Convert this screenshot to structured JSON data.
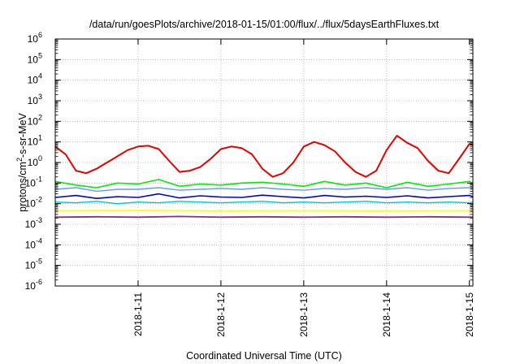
{
  "chart_data": {
    "type": "line",
    "title": "/data/run/goesPlots/archive/2018-01-15/01:00/flux/../flux/5daysEarthFluxes.txt",
    "xlabel": "Coordinated Universal Time (UTC)",
    "ylabel": {
      "base": "protons/cm",
      "sup": "2",
      "rest": "-s-sr-MeV"
    },
    "yscale": "log",
    "ylim": [
      1e-06,
      1000000.0
    ],
    "xlim": [
      "2018-01-10T00:00",
      "2018-01-15T01:00"
    ],
    "grid": true,
    "x_ticks": [
      {
        "at": "2018-01-11T00:00",
        "label": "2018-1-11"
      },
      {
        "at": "2018-01-12T00:00",
        "label": "2018-1-12"
      },
      {
        "at": "2018-01-13T00:00",
        "label": "2018-1-13"
      },
      {
        "at": "2018-01-14T00:00",
        "label": "2018-1-14"
      },
      {
        "at": "2018-01-15T00:00",
        "label": "2018-1-15"
      }
    ],
    "y_ticks": [
      {
        "value": 1000000.0,
        "base": "10",
        "exp": "6"
      },
      {
        "value": 100000.0,
        "base": "10",
        "exp": "5"
      },
      {
        "value": 10000.0,
        "base": "10",
        "exp": "4"
      },
      {
        "value": 1000.0,
        "base": "10",
        "exp": "3"
      },
      {
        "value": 100.0,
        "base": "10",
        "exp": "2"
      },
      {
        "value": 10.0,
        "base": "10",
        "exp": "1"
      },
      {
        "value": 1.0,
        "base": "10",
        "exp": "0"
      },
      {
        "value": 0.1,
        "base": "10",
        "exp": "-1"
      },
      {
        "value": 0.01,
        "base": "10",
        "exp": "-2"
      },
      {
        "value": 0.001,
        "base": "10",
        "exp": "-3"
      },
      {
        "value": 0.0001,
        "base": "10",
        "exp": "-4"
      },
      {
        "value": 1e-05,
        "base": "10",
        "exp": "-5"
      },
      {
        "value": 1e-06,
        "base": "10",
        "exp": "-6"
      }
    ],
    "series": [
      {
        "color": "#e60000",
        "width": 2.0,
        "x": [
          "2018-01-10T00:00",
          "2018-01-10T03:00",
          "2018-01-10T06:00",
          "2018-01-10T09:00",
          "2018-01-10T12:00",
          "2018-01-10T15:00",
          "2018-01-10T18:00",
          "2018-01-10T21:00",
          "2018-01-11T00:00",
          "2018-01-11T03:00",
          "2018-01-11T06:00",
          "2018-01-11T09:00",
          "2018-01-11T12:00",
          "2018-01-11T15:00",
          "2018-01-11T18:00",
          "2018-01-11T21:00",
          "2018-01-12T00:00",
          "2018-01-12T03:00",
          "2018-01-12T06:00",
          "2018-01-12T09:00",
          "2018-01-12T12:00",
          "2018-01-12T15:00",
          "2018-01-12T18:00",
          "2018-01-12T21:00",
          "2018-01-13T00:00",
          "2018-01-13T03:00",
          "2018-01-13T06:00",
          "2018-01-13T09:00",
          "2018-01-13T12:00",
          "2018-01-13T15:00",
          "2018-01-13T18:00",
          "2018-01-13T21:00",
          "2018-01-14T00:00",
          "2018-01-14T03:00",
          "2018-01-14T06:00",
          "2018-01-14T09:00",
          "2018-01-14T12:00",
          "2018-01-14T15:00",
          "2018-01-14T18:00",
          "2018-01-14T21:00",
          "2018-01-15T00:00",
          "2018-01-15T01:00"
        ],
        "y": [
          6,
          2.5,
          0.4,
          0.3,
          0.5,
          1.0,
          2.0,
          4.0,
          6,
          6.5,
          4.5,
          1.2,
          0.35,
          0.4,
          0.6,
          1.5,
          4.5,
          6,
          5,
          2.5,
          0.5,
          0.2,
          0.3,
          1.0,
          6,
          10,
          7,
          3.5,
          1.0,
          0.35,
          0.2,
          0.4,
          4,
          20,
          9,
          5,
          1.2,
          0.4,
          0.3,
          1.5,
          8,
          7
        ]
      },
      {
        "color": "#00ee00",
        "width": 1.6,
        "x": [
          "2018-01-10T00:00",
          "2018-01-10T06:00",
          "2018-01-10T12:00",
          "2018-01-10T18:00",
          "2018-01-11T00:00",
          "2018-01-11T06:00",
          "2018-01-11T12:00",
          "2018-01-11T18:00",
          "2018-01-12T00:00",
          "2018-01-12T06:00",
          "2018-01-12T12:00",
          "2018-01-12T18:00",
          "2018-01-13T00:00",
          "2018-01-13T06:00",
          "2018-01-13T12:00",
          "2018-01-13T18:00",
          "2018-01-14T00:00",
          "2018-01-14T06:00",
          "2018-01-14T12:00",
          "2018-01-14T18:00",
          "2018-01-15T00:00",
          "2018-01-15T01:00"
        ],
        "y": [
          0.12,
          0.08,
          0.06,
          0.1,
          0.09,
          0.15,
          0.07,
          0.09,
          0.08,
          0.1,
          0.11,
          0.09,
          0.07,
          0.12,
          0.08,
          0.1,
          0.06,
          0.11,
          0.07,
          0.09,
          0.12,
          0.1
        ]
      },
      {
        "color": "#6699ff",
        "width": 1.4,
        "x": [
          "2018-01-10T00:00",
          "2018-01-10T06:00",
          "2018-01-10T12:00",
          "2018-01-10T18:00",
          "2018-01-11T00:00",
          "2018-01-11T06:00",
          "2018-01-11T12:00",
          "2018-01-11T18:00",
          "2018-01-12T00:00",
          "2018-01-12T06:00",
          "2018-01-12T12:00",
          "2018-01-12T18:00",
          "2018-01-13T00:00",
          "2018-01-13T06:00",
          "2018-01-13T12:00",
          "2018-01-13T18:00",
          "2018-01-14T00:00",
          "2018-01-14T06:00",
          "2018-01-14T12:00",
          "2018-01-14T18:00",
          "2018-01-15T00:00",
          "2018-01-15T01:00"
        ],
        "y": [
          0.05,
          0.06,
          0.04,
          0.05,
          0.05,
          0.06,
          0.045,
          0.05,
          0.055,
          0.05,
          0.06,
          0.05,
          0.045,
          0.055,
          0.05,
          0.06,
          0.05,
          0.06,
          0.045,
          0.055,
          0.06,
          0.055
        ]
      },
      {
        "color": "#0000dd",
        "width": 1.6,
        "x": [
          "2018-01-10T00:00",
          "2018-01-10T06:00",
          "2018-01-10T12:00",
          "2018-01-10T18:00",
          "2018-01-11T00:00",
          "2018-01-11T06:00",
          "2018-01-11T12:00",
          "2018-01-11T18:00",
          "2018-01-12T00:00",
          "2018-01-12T06:00",
          "2018-01-12T12:00",
          "2018-01-12T18:00",
          "2018-01-13T00:00",
          "2018-01-13T06:00",
          "2018-01-13T12:00",
          "2018-01-13T18:00",
          "2018-01-14T00:00",
          "2018-01-14T06:00",
          "2018-01-14T12:00",
          "2018-01-14T18:00",
          "2018-01-15T00:00",
          "2018-01-15T01:00"
        ],
        "y": [
          0.02,
          0.025,
          0.018,
          0.022,
          0.02,
          0.03,
          0.019,
          0.024,
          0.021,
          0.02,
          0.026,
          0.022,
          0.019,
          0.025,
          0.021,
          0.023,
          0.02,
          0.024,
          0.019,
          0.022,
          0.025,
          0.022
        ]
      },
      {
        "color": "#00c8c8",
        "width": 1.4,
        "x": [
          "2018-01-10T00:00",
          "2018-01-10T06:00",
          "2018-01-10T12:00",
          "2018-01-10T18:00",
          "2018-01-11T00:00",
          "2018-01-11T06:00",
          "2018-01-11T12:00",
          "2018-01-11T18:00",
          "2018-01-12T00:00",
          "2018-01-12T06:00",
          "2018-01-12T12:00",
          "2018-01-12T18:00",
          "2018-01-13T00:00",
          "2018-01-13T06:00",
          "2018-01-13T12:00",
          "2018-01-13T18:00",
          "2018-01-14T00:00",
          "2018-01-14T06:00",
          "2018-01-14T12:00",
          "2018-01-14T18:00",
          "2018-01-15T00:00",
          "2018-01-15T01:00"
        ],
        "y": [
          0.012,
          0.011,
          0.013,
          0.01,
          0.012,
          0.011,
          0.013,
          0.012,
          0.011,
          0.012,
          0.013,
          0.011,
          0.012,
          0.011,
          0.012,
          0.013,
          0.011,
          0.012,
          0.011,
          0.012,
          0.011,
          0.012
        ]
      },
      {
        "color": "#ffff00",
        "width": 1.8,
        "x": [
          "2018-01-10T00:00",
          "2018-01-11T00:00",
          "2018-01-12T00:00",
          "2018-01-13T00:00",
          "2018-01-14T00:00",
          "2018-01-15T00:00",
          "2018-01-15T01:00"
        ],
        "y": [
          0.0045,
          0.0046,
          0.0044,
          0.0045,
          0.0044,
          0.0045,
          0.0045
        ]
      },
      {
        "color": "#803380",
        "width": 1.8,
        "x": [
          "2018-01-10T00:00",
          "2018-01-10T12:00",
          "2018-01-11T00:00",
          "2018-01-11T12:00",
          "2018-01-12T00:00",
          "2018-01-12T12:00",
          "2018-01-13T00:00",
          "2018-01-13T12:00",
          "2018-01-14T00:00",
          "2018-01-14T12:00",
          "2018-01-15T00:00",
          "2018-01-15T01:00"
        ],
        "y": [
          0.0022,
          0.0023,
          0.0022,
          0.0024,
          0.0022,
          0.0023,
          0.0022,
          0.0023,
          0.0022,
          0.0023,
          0.0022,
          0.0022
        ]
      }
    ]
  }
}
